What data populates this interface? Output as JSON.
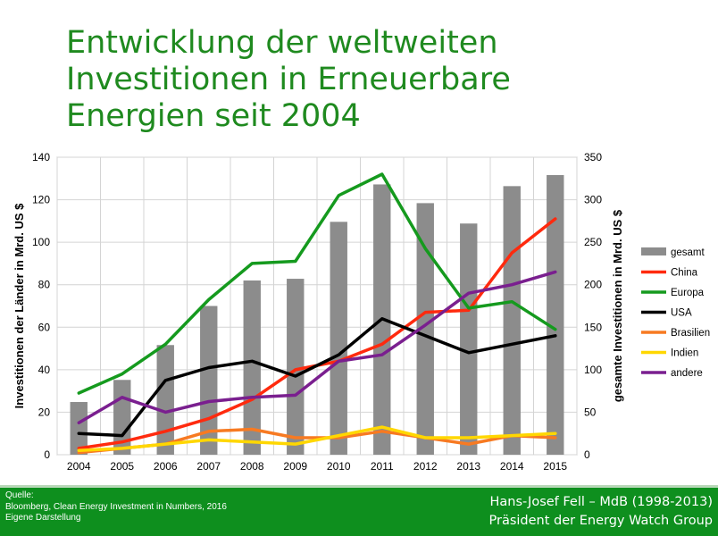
{
  "slide": {
    "title_lines": [
      "Entwicklung der weltweiten",
      "Investitionen in Erneuerbare",
      "Energien seit 2004"
    ]
  },
  "footer": {
    "source_lines": [
      "Quelle:",
      "Bloomberg, Clean Energy Investment in Numbers, 2016",
      "Eigene Darstellung"
    ],
    "author_lines": [
      "Hans-Josef Fell – MdB (1998-2013)",
      "Präsident der Energy Watch Group"
    ],
    "background_color": "#0e8f1e"
  },
  "chart_data": {
    "type": "bar+line",
    "categories": [
      "2004",
      "2005",
      "2006",
      "2007",
      "2008",
      "2009",
      "2010",
      "2011",
      "2012",
      "2013",
      "2014",
      "2015"
    ],
    "ylabel_left": "Investitionen der Länder in Mrd. US $",
    "ylabel_right": "gesamte Investitionen in Mrd. US $",
    "ylim_left": [
      0,
      140
    ],
    "ylim_right": [
      0,
      350
    ],
    "yticks_left": [
      0,
      20,
      40,
      60,
      80,
      100,
      120,
      140
    ],
    "yticks_right": [
      0,
      50,
      100,
      150,
      200,
      250,
      300,
      350
    ],
    "grid": true,
    "legend_position": "right",
    "bars": {
      "name": "gesamt",
      "color": "#8c8c8c",
      "axis": "right",
      "values": [
        62,
        88,
        129,
        175,
        205,
        207,
        274,
        318,
        296,
        272,
        316,
        329
      ]
    },
    "series": [
      {
        "name": "China",
        "color": "#ff2a0e",
        "values": [
          3,
          6,
          11,
          17,
          26,
          40,
          44,
          52,
          67,
          68,
          95,
          111
        ]
      },
      {
        "name": "Europa",
        "color": "#159a1e",
        "values": [
          29,
          38,
          52,
          73,
          90,
          91,
          122,
          132,
          97,
          69,
          72,
          59
        ]
      },
      {
        "name": "USA",
        "color": "#000000",
        "values": [
          10,
          9,
          35,
          41,
          44,
          37,
          47,
          64,
          56,
          48,
          52,
          56
        ]
      },
      {
        "name": "Brasilien",
        "color": "#f77a22",
        "values": [
          1,
          3,
          5,
          11,
          12,
          8,
          8,
          11,
          8,
          5,
          9,
          8
        ]
      },
      {
        "name": "Indien",
        "color": "#ffd700",
        "values": [
          2,
          3,
          5,
          7,
          6,
          5,
          9,
          13,
          8,
          8,
          9,
          10
        ]
      },
      {
        "name": "andere",
        "color": "#7a1f8f",
        "values": [
          15,
          27,
          20,
          25,
          27,
          28,
          44,
          47,
          61,
          76,
          80,
          86
        ]
      }
    ]
  }
}
